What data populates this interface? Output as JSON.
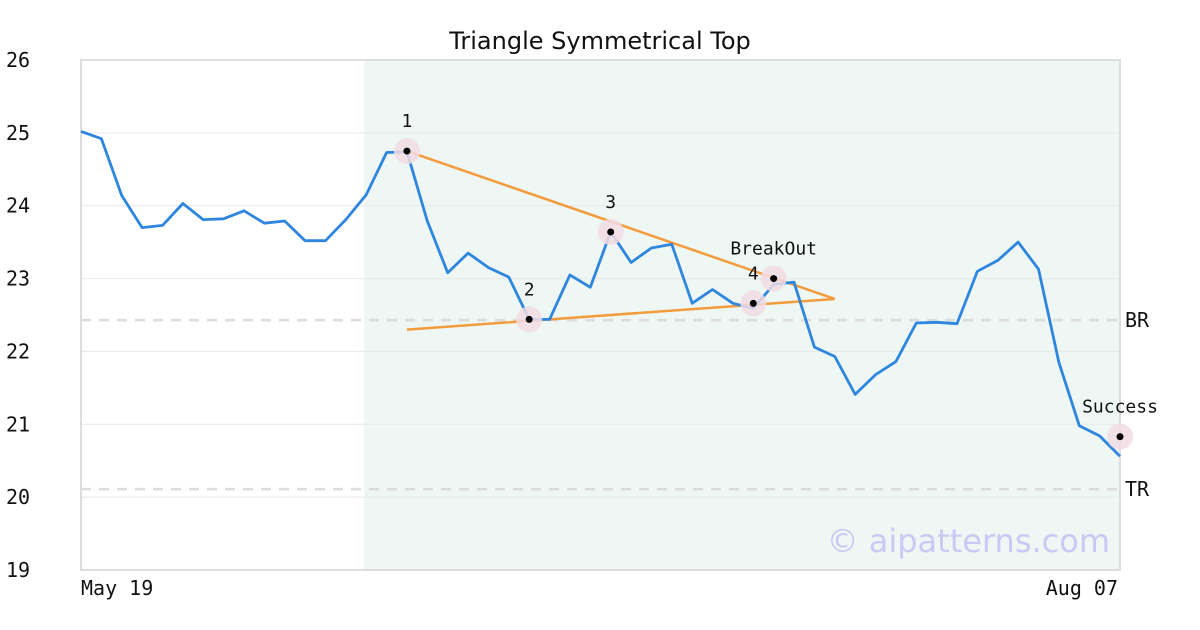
{
  "chart_data": {
    "type": "line",
    "title": "Triangle Symmetrical Top",
    "xlabel": "",
    "ylabel": "",
    "ylim": [
      19,
      26
    ],
    "yticks": [
      19,
      20,
      21,
      22,
      23,
      24,
      25,
      26
    ],
    "xtick_labels": [
      "May 19",
      "Aug 07"
    ],
    "grid": true,
    "series": [
      {
        "color": "#2e86de",
        "values": [
          25.02,
          24.92,
          24.14,
          23.7,
          23.73,
          24.03,
          23.81,
          23.82,
          23.93,
          23.76,
          23.79,
          23.52,
          23.52,
          23.81,
          24.15,
          24.73,
          24.74,
          23.79,
          23.08,
          23.35,
          23.15,
          23.02,
          22.44,
          22.44,
          23.05,
          22.88,
          23.64,
          23.22,
          23.42,
          23.47,
          22.66,
          22.85,
          22.66,
          22.59,
          22.92,
          22.95,
          22.06,
          21.93,
          21.41,
          21.68,
          21.86,
          22.39,
          22.4,
          22.38,
          23.1,
          23.25,
          23.5,
          23.13,
          21.85,
          20.98,
          20.84,
          20.56
        ]
      }
    ],
    "pattern_region": {
      "start_index": 14,
      "end_index": 51
    },
    "trend_lines": [
      {
        "color": "#f39c3d",
        "from": {
          "index": 16,
          "value": 24.75
        },
        "to": {
          "index": 37,
          "value": 22.72
        }
      },
      {
        "color": "#f39c3d",
        "from": {
          "index": 16,
          "value": 22.3
        },
        "to": {
          "index": 37,
          "value": 22.72
        }
      }
    ],
    "markers": [
      {
        "label": "1",
        "index": 16,
        "value": 24.75
      },
      {
        "label": "2",
        "index": 22,
        "value": 22.44
      },
      {
        "label": "3",
        "index": 26,
        "value": 23.64
      },
      {
        "label": "4",
        "index": 33,
        "value": 22.66
      },
      {
        "label": "BreakOut",
        "index": 34,
        "value": 23.0
      },
      {
        "label": "Success",
        "index": 51,
        "value": 20.83
      }
    ],
    "reference_lines": [
      {
        "label": "BR",
        "value": 22.43
      },
      {
        "label": "TR",
        "value": 20.11
      }
    ],
    "watermark": "© aipatterns.com"
  }
}
